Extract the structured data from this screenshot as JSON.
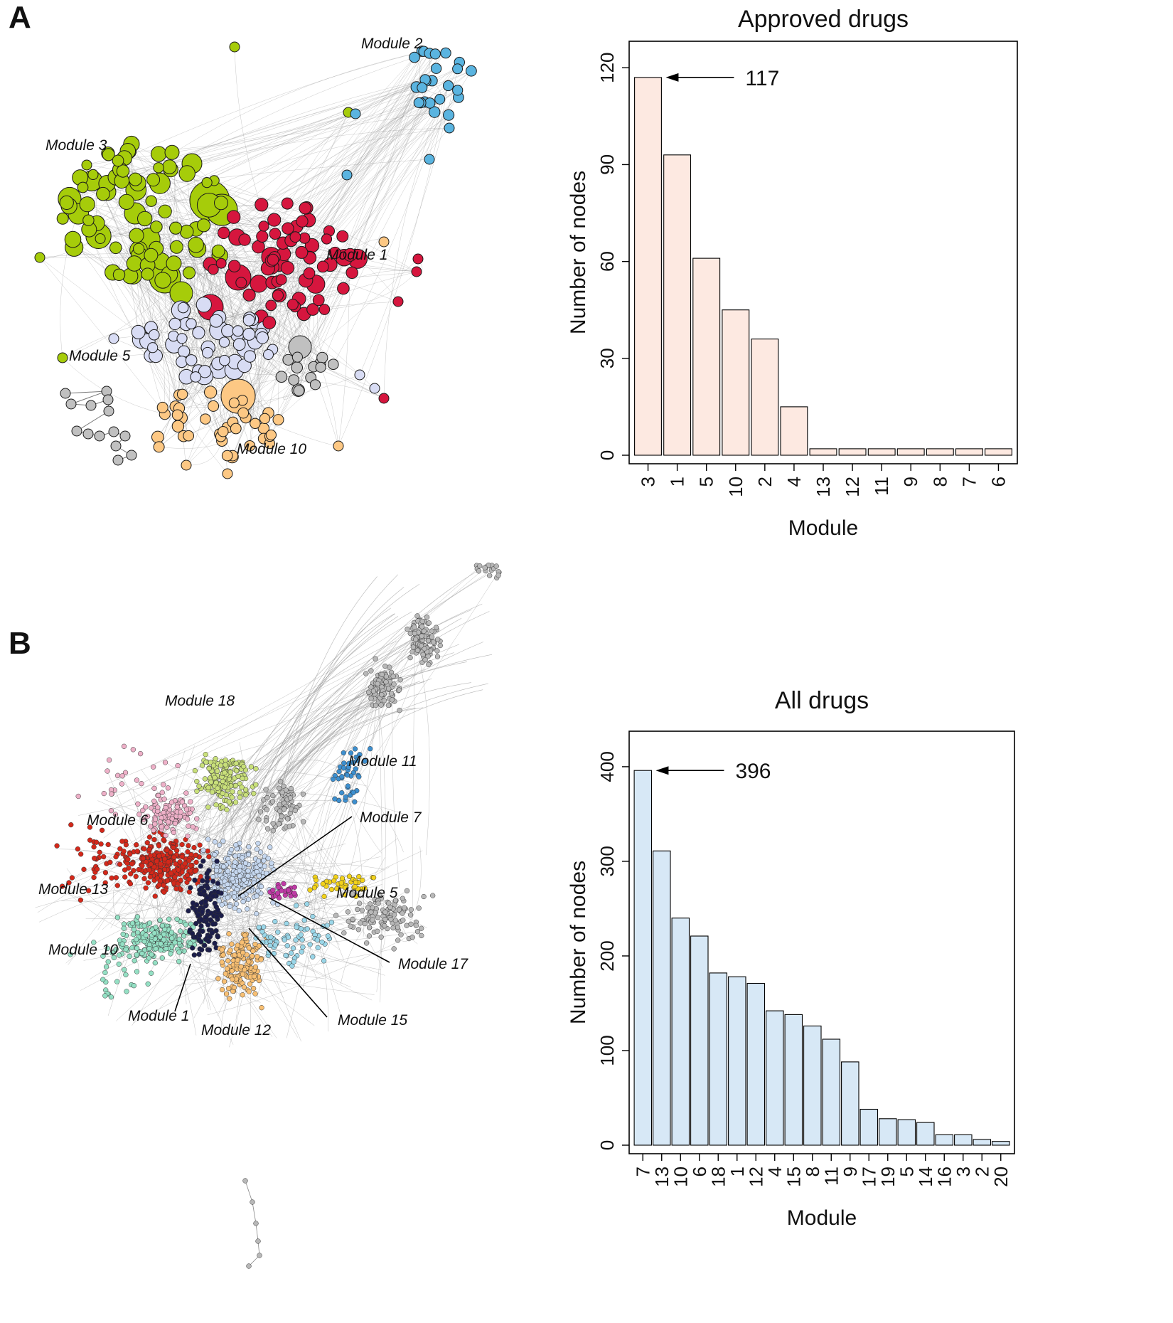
{
  "panels": {
    "a": {
      "letter": "A"
    },
    "b": {
      "letter": "B"
    }
  },
  "network_a": {
    "labels": [
      "Module 2",
      "Module 3",
      "Module 1",
      "Module 5",
      "Module 10"
    ],
    "colors": {
      "module1": "#d6163e",
      "module2": "#5ab4e0",
      "module3": "#a6cc0a",
      "module5": "#d8dcf4",
      "module10": "#fdc884",
      "other": "#c0c0c0"
    }
  },
  "network_b": {
    "labels": [
      "Module 18",
      "Module 11",
      "Module 6",
      "Module 7",
      "Module 13",
      "Module 5",
      "Module 10",
      "Module 17",
      "Module 1",
      "Module 15",
      "Module 12"
    ],
    "colors": {
      "module18": "#c9e07a",
      "module11": "#3d8fcf",
      "module6": "#eeb0c8",
      "module7": "#c6d8f0",
      "module13": "#d4281a",
      "module5": "#f2d21a",
      "module10": "#94e0c4",
      "module17": "#c03aa6",
      "module1": "#1b1d4a",
      "module15": "#9ad6e8",
      "module12": "#f8bf72",
      "other": "#b8b8b8"
    }
  },
  "chart_data": [
    {
      "type": "bar",
      "title": "Approved drugs",
      "categories": [
        "3",
        "1",
        "5",
        "10",
        "2",
        "4",
        "13",
        "12",
        "11",
        "9",
        "8",
        "7",
        "6"
      ],
      "values": [
        117,
        93,
        61,
        45,
        36,
        15,
        2,
        2,
        2,
        2,
        2,
        2,
        2
      ],
      "xlabel": "Module",
      "ylabel": "Number of nodes",
      "ylim": [
        0,
        126
      ],
      "yticks": [
        "0",
        "30",
        "60",
        "90",
        "120"
      ],
      "yticks_values": [
        0,
        30,
        60,
        90,
        120
      ],
      "bar_color": "#fde9e1",
      "annotation": {
        "text": "117",
        "category": "3",
        "value": 117
      }
    },
    {
      "type": "bar",
      "title": "All drugs",
      "categories": [
        "7",
        "13",
        "10",
        "6",
        "18",
        "1",
        "12",
        "4",
        "15",
        "8",
        "11",
        "9",
        "17",
        "19",
        "5",
        "14",
        "16",
        "3",
        "2",
        "20"
      ],
      "values": [
        396,
        311,
        240,
        221,
        182,
        178,
        171,
        142,
        138,
        126,
        112,
        88,
        38,
        28,
        27,
        24,
        11,
        11,
        6,
        4
      ],
      "xlabel": "Module",
      "ylabel": "Number of nodes",
      "ylim": [
        0,
        430
      ],
      "yticks": [
        "0",
        "100",
        "200",
        "300",
        "400"
      ],
      "yticks_values": [
        0,
        100,
        200,
        300,
        400
      ],
      "bar_color": "#d7e8f6",
      "annotation": {
        "text": "396",
        "category": "7",
        "value": 396
      }
    }
  ]
}
